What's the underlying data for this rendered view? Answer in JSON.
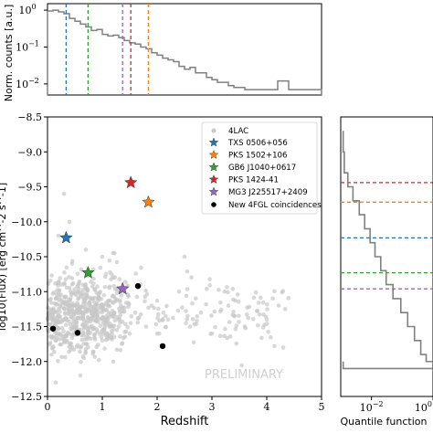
{
  "chart_data": [
    {
      "id": "top-histogram",
      "type": "histogram",
      "title": "",
      "xlabel": "",
      "ylabel": "Norm. counts [a.u.]",
      "xlim": [
        0,
        5
      ],
      "ylim": [
        0.005,
        1.5
      ],
      "yscale": "log",
      "ytick_labels": [
        "10^0",
        "10^-1",
        "10^-2"
      ],
      "ytick_values": [
        1,
        0.1,
        0.01
      ],
      "bin_width": 0.1,
      "bin_start": 0,
      "values": [
        0.95,
        1.0,
        0.9,
        0.8,
        0.6,
        0.5,
        0.42,
        0.35,
        0.28,
        0.3,
        0.22,
        0.2,
        0.21,
        0.18,
        0.15,
        0.13,
        0.12,
        0.1,
        0.09,
        0.07,
        0.06,
        0.05,
        0.045,
        0.04,
        0.03,
        0.025,
        0.028,
        0.02,
        0.02,
        0.015,
        0.013,
        0.011,
        0.011,
        0.009,
        0.008,
        0.008,
        0.007,
        0.007,
        0.007,
        0.007,
        0.007,
        0.007,
        0.012,
        0.012,
        0.007,
        0.007,
        0.007,
        0.007,
        0.007,
        0.007
      ],
      "markers": [
        {
          "name": "TXS 0506+056",
          "x": 0.34,
          "color": "#1f77b4"
        },
        {
          "name": "GB6 J1040+0617",
          "x": 0.74,
          "color": "#2ca02c"
        },
        {
          "name": "MG3 J225517+2409",
          "x": 1.37,
          "color": "#9467bd"
        },
        {
          "name": "PKS 1424-41",
          "x": 1.52,
          "color": "#d62728"
        },
        {
          "name": "PKS 1502+106",
          "x": 1.84,
          "color": "#ff7f0e"
        }
      ]
    },
    {
      "id": "scatter",
      "type": "scatter",
      "title": "",
      "xlabel": "Redshift",
      "ylabel": "log10(Flux) [erg cm^-2 s^-1]",
      "xlim": [
        0,
        5
      ],
      "ylim": [
        -12.5,
        -8.5
      ],
      "xticks": [
        0,
        1,
        2,
        3,
        4,
        5
      ],
      "yticks": [
        -12.5,
        -12.0,
        -11.5,
        -11.0,
        -10.5,
        -10.0,
        -9.5,
        -9.0,
        -8.5
      ],
      "grid": false,
      "legend": "top-right",
      "annotation": "PRELIMINARY",
      "background_cloud_label": "4LAC",
      "background_cloud_color": "#c8c8c8",
      "background_points_sample": [
        [
          0.05,
          -11.3
        ],
        [
          0.1,
          -11.8
        ],
        [
          0.15,
          -11.1
        ],
        [
          0.2,
          -11.6
        ],
        [
          0.25,
          -10.9
        ],
        [
          0.3,
          -11.4
        ],
        [
          0.35,
          -11.7
        ],
        [
          0.4,
          -11.2
        ],
        [
          0.45,
          -10.6
        ],
        [
          0.5,
          -11.5
        ],
        [
          0.55,
          -11.0
        ],
        [
          0.6,
          -11.8
        ],
        [
          0.65,
          -11.3
        ],
        [
          0.7,
          -10.4
        ],
        [
          0.75,
          -11.6
        ],
        [
          0.8,
          -11.1
        ],
        [
          0.9,
          -11.4
        ],
        [
          1.0,
          -11.7
        ],
        [
          1.1,
          -11.2
        ],
        [
          1.2,
          -10.8
        ],
        [
          1.3,
          -11.5
        ],
        [
          1.4,
          -11.0
        ],
        [
          1.5,
          -11.6
        ],
        [
          1.6,
          -11.3
        ],
        [
          1.7,
          -10.9
        ],
        [
          1.8,
          -11.5
        ],
        [
          1.9,
          -11.2
        ],
        [
          2.0,
          -11.6
        ],
        [
          2.2,
          -11.4
        ],
        [
          2.4,
          -11.0
        ],
        [
          2.6,
          -11.5
        ],
        [
          2.8,
          -11.3
        ],
        [
          3.0,
          -11.6
        ],
        [
          3.3,
          -11.2
        ],
        [
          3.6,
          -11.5
        ],
        [
          4.0,
          -11.4
        ],
        [
          4.3,
          -11.8
        ],
        [
          0.2,
          -10.2
        ],
        [
          0.4,
          -10.0
        ],
        [
          0.3,
          -9.6
        ],
        [
          1.2,
          -12.0
        ],
        [
          0.6,
          -12.2
        ],
        [
          2.5,
          -10.5
        ],
        [
          1.0,
          -10.5
        ],
        [
          0.15,
          -12.3
        ]
      ],
      "highlight": [
        {
          "name": "TXS 0506+056",
          "x": 0.34,
          "y": -10.23,
          "color": "#1f77b4"
        },
        {
          "name": "PKS 1502+106",
          "x": 1.84,
          "y": -9.72,
          "color": "#ff7f0e"
        },
        {
          "name": "GB6 J1040+0617",
          "x": 0.74,
          "y": -10.73,
          "color": "#2ca02c"
        },
        {
          "name": "PKS 1424-41",
          "x": 1.52,
          "y": -9.44,
          "color": "#d62728"
        },
        {
          "name": "MG3 J225517+2409",
          "x": 1.37,
          "y": -10.96,
          "color": "#9467bd"
        }
      ],
      "new_coincidences_label": "New 4FGL coincidences",
      "new_coincidences": [
        {
          "x": 0.1,
          "y": -11.53
        },
        {
          "x": 0.55,
          "y": -11.59
        },
        {
          "x": 1.65,
          "y": -10.92
        },
        {
          "x": 2.1,
          "y": -11.78
        }
      ]
    },
    {
      "id": "quantile-panel",
      "type": "line",
      "title": "",
      "xlabel": "Quantile function",
      "ylabel": "",
      "xscale": "log",
      "xlim": [
        0.001,
        1
      ],
      "ylim": [
        -12.5,
        -8.5
      ],
      "xtick_labels": [
        "10^-2",
        "10^0"
      ],
      "xtick_values": [
        0.01,
        1
      ],
      "curve": [
        [
          0.0012,
          -12.1
        ],
        [
          0.0012,
          -12.0
        ],
        [
          1.0,
          -12.0
        ]
      ],
      "steps": [
        {
          "y": -9.0,
          "q": 0.0013
        },
        {
          "y": -9.3,
          "q": 0.0017
        },
        {
          "y": -9.5,
          "q": 0.0025
        },
        {
          "y": -9.7,
          "q": 0.004
        },
        {
          "y": -9.9,
          "q": 0.006
        },
        {
          "y": -10.1,
          "q": 0.009
        },
        {
          "y": -10.3,
          "q": 0.013
        },
        {
          "y": -10.5,
          "q": 0.02
        },
        {
          "y": -10.7,
          "q": 0.03
        },
        {
          "y": -10.9,
          "q": 0.05
        },
        {
          "y": -11.1,
          "q": 0.09
        },
        {
          "y": -11.3,
          "q": 0.15
        },
        {
          "y": -11.5,
          "q": 0.25
        },
        {
          "y": -11.7,
          "q": 0.4
        },
        {
          "y": -11.9,
          "q": 0.6
        },
        {
          "y": -12.0,
          "q": 1.0
        }
      ],
      "hlines": [
        {
          "name": "PKS 1424-41",
          "y": -9.44,
          "color": "#d62728"
        },
        {
          "name": "PKS 1502+106",
          "y": -9.72,
          "color": "#ff7f0e"
        },
        {
          "name": "TXS 0506+056",
          "y": -10.23,
          "color": "#1f77b4"
        },
        {
          "name": "GB6 J1040+0617",
          "y": -10.73,
          "color": "#2ca02c"
        },
        {
          "name": "MG3 J225517+2409",
          "y": -10.96,
          "color": "#9467bd"
        }
      ]
    }
  ]
}
